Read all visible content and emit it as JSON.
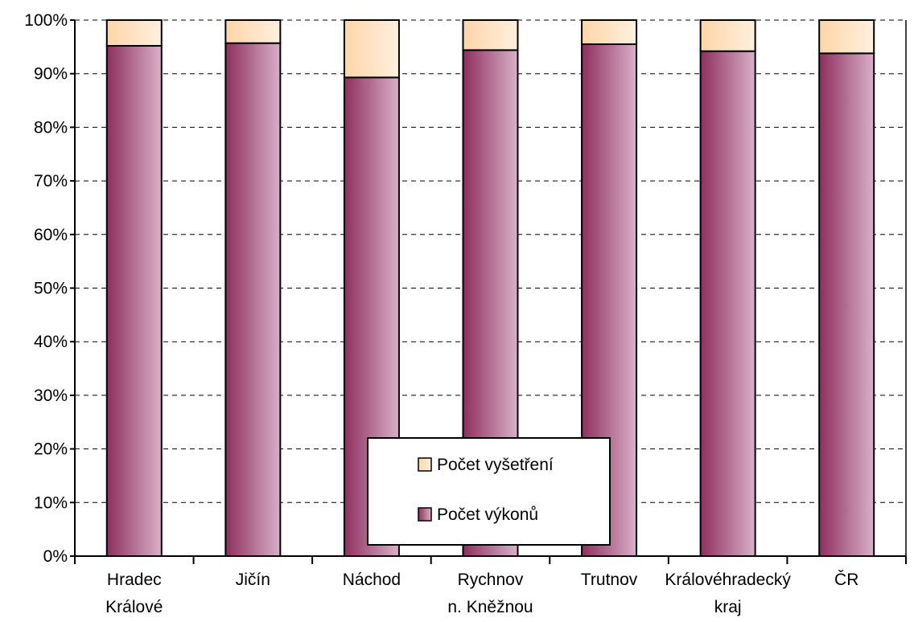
{
  "chart_data": {
    "type": "bar",
    "stacked": true,
    "categories": [
      [
        "Hradec",
        "Králové"
      ],
      [
        "Jičín"
      ],
      [
        "Náchod"
      ],
      [
        "Rychnov",
        "n. Kněžnou"
      ],
      [
        "Trutnov"
      ],
      [
        "Královéhradecký",
        "kraj"
      ],
      [
        "ČR"
      ]
    ],
    "series": [
      {
        "name": "Počet výkonů",
        "values": [
          95.2,
          95.7,
          89.3,
          94.4,
          95.5,
          94.2,
          93.8
        ],
        "color_dark": "#8e2f5e",
        "color_light": "#d9b0c8"
      },
      {
        "name": "Počet vyšetření",
        "values": [
          4.8,
          4.3,
          10.7,
          5.6,
          4.5,
          5.8,
          6.2
        ],
        "color_dark": "#ffd5a8",
        "color_light": "#fff0df"
      }
    ],
    "ylim": [
      0,
      100
    ],
    "yticks": [
      "0%",
      "10%",
      "20%",
      "30%",
      "40%",
      "50%",
      "60%",
      "70%",
      "80%",
      "90%",
      "100%"
    ],
    "grid": true,
    "legend": {
      "position": "bottom-center",
      "order": [
        "Počet vyšetření",
        "Počet výkonů"
      ]
    }
  }
}
